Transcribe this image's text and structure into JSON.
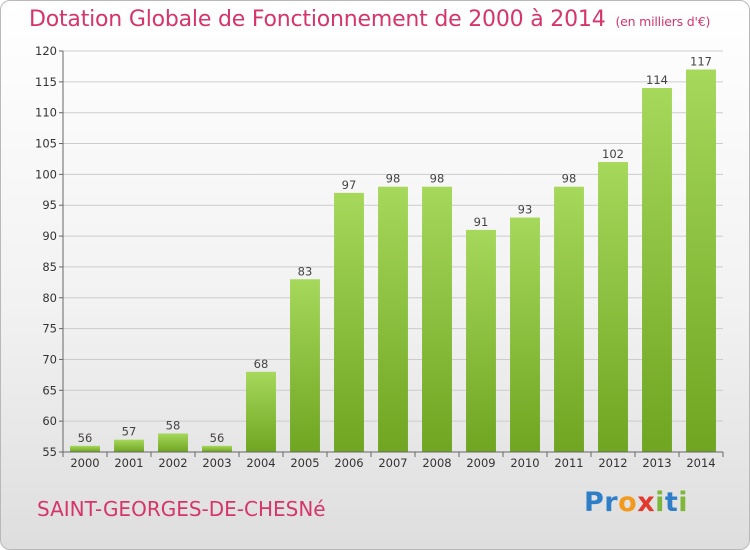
{
  "chart_data": {
    "type": "bar",
    "title": "Dotation Globale de Fonctionnement de 2000 à 2014",
    "subtitle": "(en milliers d'€)",
    "categories": [
      "2000",
      "2001",
      "2002",
      "2003",
      "2004",
      "2005",
      "2006",
      "2007",
      "2008",
      "2009",
      "2010",
      "2011",
      "2012",
      "2013",
      "2014"
    ],
    "values": [
      56,
      57,
      58,
      56,
      68,
      83,
      97,
      98,
      98,
      91,
      93,
      98,
      102,
      114,
      117
    ],
    "ylim": [
      55,
      120
    ],
    "yticks": [
      55,
      60,
      65,
      70,
      75,
      80,
      85,
      90,
      95,
      100,
      105,
      110,
      115,
      120
    ],
    "grid": true,
    "colors": {
      "bar_light": "#a6d85b",
      "bar_dark": "#6fa521",
      "grid": "#cccccc",
      "title": "#d6356a"
    }
  },
  "footer": {
    "commune": "SAINT-GEORGES-DE-CHESNé"
  },
  "logo": {
    "letters": [
      {
        "ch": "P",
        "color": "#2f7fc8"
      },
      {
        "ch": "r",
        "color": "#2f7fc8"
      },
      {
        "ch": "o",
        "color": "#f39a1e"
      },
      {
        "ch": "x",
        "color": "#e23b2d"
      },
      {
        "ch": "i",
        "color": "#7db73a"
      },
      {
        "ch": "t",
        "color": "#2f7fc8"
      },
      {
        "ch": "i",
        "color": "#7db73a"
      }
    ]
  }
}
